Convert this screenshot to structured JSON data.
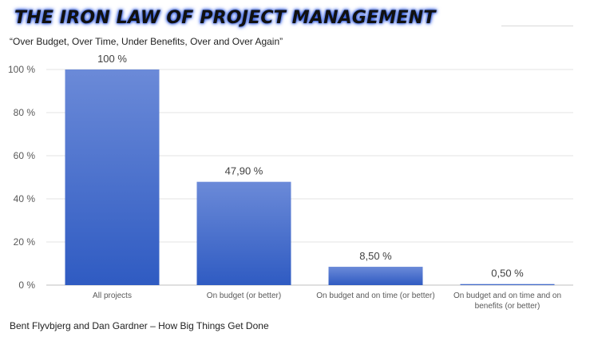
{
  "header": {
    "title": "THE IRON LAW OF PROJECT MANAGEMENT",
    "subtitle": "“Over Budget, Over Time, Under Benefits, Over and Over Again”"
  },
  "footer": {
    "source": "Bent Flyvbjerg and Dan Gardner – How Big Things Get Done"
  },
  "colors": {
    "bar_top": "#6b8ad8",
    "bar_bottom": "#2f5bc2",
    "grid": "#e3e3e3",
    "axis_text": "#595959"
  },
  "chart_data": {
    "type": "bar",
    "categories": [
      [
        "All projects"
      ],
      [
        "On budget (or better)"
      ],
      [
        "On budget and on time (or better)"
      ],
      [
        "On budget and on time and on",
        "benefits (or better)"
      ]
    ],
    "values": [
      100,
      47.9,
      8.5,
      0.5
    ],
    "data_labels": [
      "100 %",
      "47,90 %",
      "8,50 %",
      "0,50 %"
    ],
    "y_ticks": [
      {
        "value": 0,
        "label": "0 %"
      },
      {
        "value": 20,
        "label": "20 %"
      },
      {
        "value": 40,
        "label": "40 %"
      },
      {
        "value": 60,
        "label": "60 %"
      },
      {
        "value": 80,
        "label": "80 %"
      },
      {
        "value": 100,
        "label": "100 %"
      }
    ],
    "ylim": [
      0,
      100
    ],
    "grid": true,
    "legend": "none"
  }
}
